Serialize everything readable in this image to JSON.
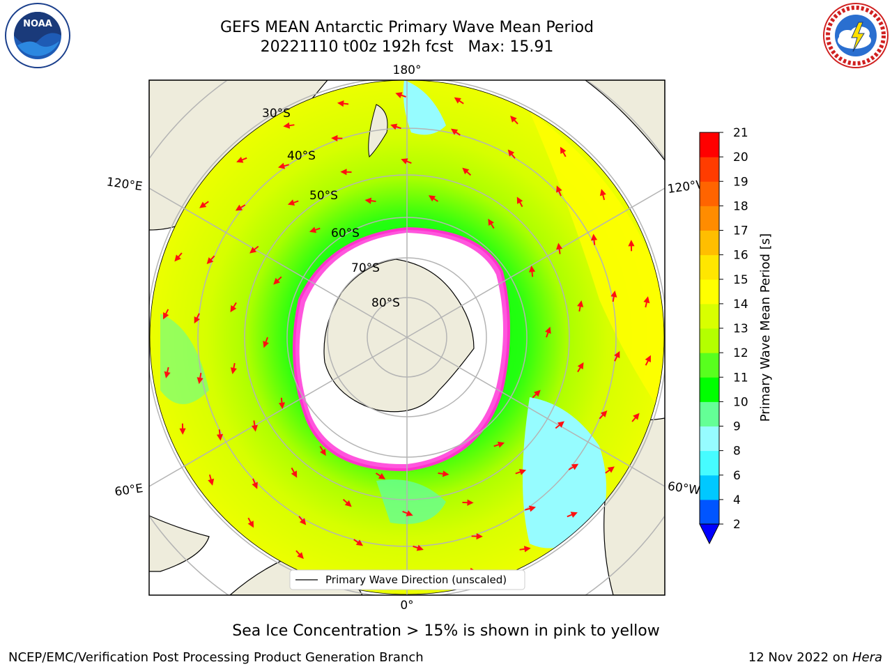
{
  "title": {
    "line1": "GEFS MEAN Antarctic Primary Wave Mean Period",
    "line2": "20221110 t00z 192h fcst   Max: 15.91"
  },
  "logos": {
    "left": {
      "name": "noaa-logo",
      "text": "NOAA",
      "ring_text": "NATIONAL OCEANIC AND ATMOSPHERIC ADMINISTRATION · U.S. DEPARTMENT OF COMMERCE"
    },
    "right": {
      "name": "nws-logo",
      "ring_text": "NATIONAL WEATHER SERVICE"
    }
  },
  "map": {
    "projection": "south polar stereographic",
    "longitude_labels": {
      "top": "180°",
      "bottom": "0°",
      "upper_left": "120°E",
      "upper_right": "120°W",
      "lower_left": "60°E",
      "lower_right": "60°W"
    },
    "latitude_labels": [
      "30°S",
      "40°S",
      "50°S",
      "60°S",
      "70°S",
      "80°S"
    ],
    "legend": "Primary Wave Direction (unscaled)",
    "colors": {
      "land": "#eeecdc",
      "ice": "#ffffff",
      "ice_edge": "#ff44dd",
      "arrow": "#ff1010",
      "grid": "#b4b4b4"
    }
  },
  "colorbar": {
    "label": "Primary Wave Mean Period [s]",
    "ticks": [
      "2",
      "4",
      "6",
      "8",
      "9",
      "10",
      "11",
      "12",
      "13",
      "14",
      "15",
      "16",
      "17",
      "18",
      "19",
      "20",
      "21"
    ],
    "colors": [
      "#0055ff",
      "#00c8ff",
      "#46fcff",
      "#96fcff",
      "#64ff96",
      "#00ff00",
      "#58ff1e",
      "#b4ff00",
      "#d8ff00",
      "#ffff00",
      "#ffe600",
      "#ffbe00",
      "#ff8c00",
      "#ff6400",
      "#ff3c00",
      "#ff0000"
    ],
    "extend_low_color": "#0000ff"
  },
  "note": "Sea Ice Concentration > 15% is shown in pink to yellow",
  "footer": {
    "left": "NCEP/EMC/Verification Post Processing Product Generation Branch",
    "date": "12 Nov 2022 on ",
    "machine": "Hera"
  }
}
